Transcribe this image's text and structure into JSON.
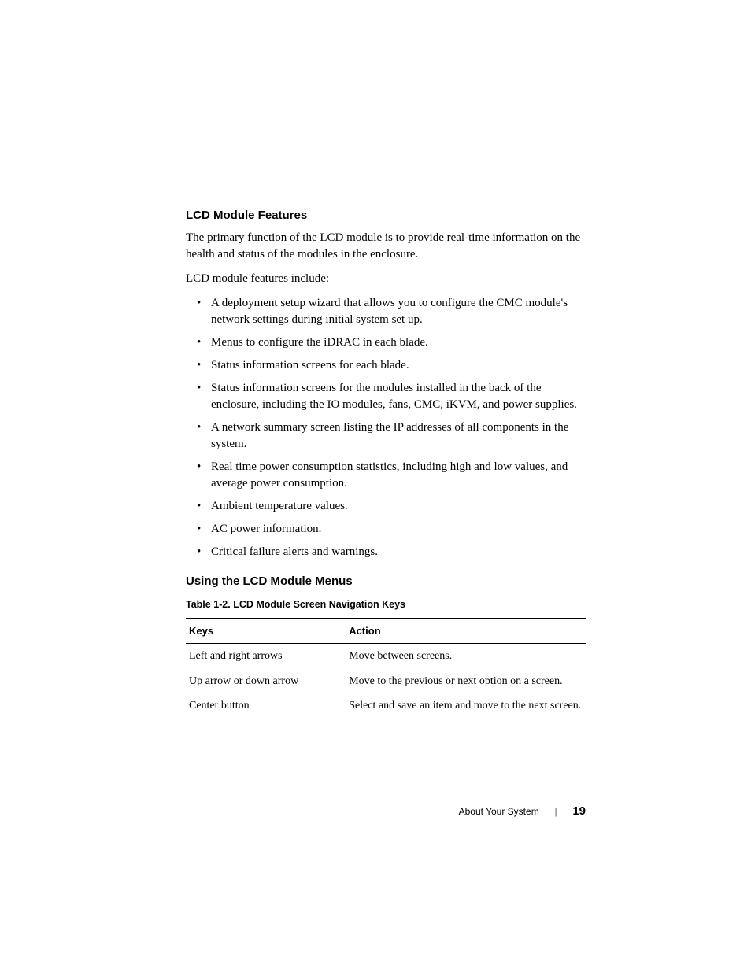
{
  "section1": {
    "heading": "LCD Module Features",
    "para1": "The primary function of the LCD module is to provide real-time information on the health and status of the modules in the enclosure.",
    "para2": "LCD module features include:",
    "bullets": [
      "A deployment setup wizard that allows you to configure the CMC module's network settings during initial system set up.",
      "Menus to configure the iDRAC in each blade.",
      "Status information screens for each blade.",
      "Status information screens for the modules installed in the back of the enclosure, including the IO modules, fans, CMC, iKVM, and power supplies.",
      "A network summary screen listing the IP addresses of all components in the system.",
      "Real time power consumption statistics, including high and low values, and average power consumption.",
      "Ambient temperature values.",
      "AC power information.",
      "Critical failure alerts and warnings."
    ]
  },
  "section2": {
    "heading": "Using the LCD Module Menus",
    "tableTitle": "Table 1-2.    LCD Module Screen Navigation Keys",
    "columns": [
      "Keys",
      "Action"
    ],
    "rows": [
      [
        "Left and right arrows",
        "Move between screens."
      ],
      [
        "Up arrow or down arrow",
        "Move to the previous or next option on a screen."
      ],
      [
        "Center button",
        "Select and save an item and move to the next screen."
      ]
    ]
  },
  "footer": {
    "sectionName": "About Your System",
    "divider": "|",
    "pageNumber": "19"
  }
}
